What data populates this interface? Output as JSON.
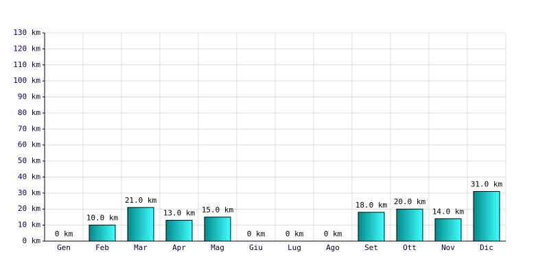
{
  "chart_data": {
    "type": "bar",
    "categories": [
      "Gen",
      "Feb",
      "Mar",
      "Apr",
      "Mag",
      "Giu",
      "Lug",
      "Ago",
      "Set",
      "Ott",
      "Nov",
      "Dic"
    ],
    "values": [
      0,
      10,
      21,
      13,
      15,
      0,
      0,
      0,
      18,
      20,
      14,
      31
    ],
    "value_labels": [
      "0 km",
      "10.0 km",
      "21.0 km",
      "13.0 km",
      "15.0 km",
      "0 km",
      "0 km",
      "0 km",
      "18.0 km",
      "20.0 km",
      "14.0 km",
      "31.0 km"
    ],
    "color": [
      "#008a8a",
      "#40ffff"
    ],
    "ylim": [
      0,
      130
    ],
    "yticks": [
      {
        "value": 0,
        "label": "0 km"
      },
      {
        "value": 10,
        "label": "10 km"
      },
      {
        "value": 20,
        "label": "20 km"
      },
      {
        "value": 30,
        "label": "30 km"
      },
      {
        "value": 40,
        "label": "40 km"
      },
      {
        "value": 50,
        "label": "50 km"
      },
      {
        "value": 60,
        "label": "60 km"
      },
      {
        "value": 70,
        "label": "70 km"
      },
      {
        "value": 80,
        "label": "80 km"
      },
      {
        "value": 90,
        "label": "90 km"
      },
      {
        "value": 100,
        "label": "100 km"
      },
      {
        "value": 110,
        "label": "110 km"
      },
      {
        "value": 120,
        "label": "120 km"
      },
      {
        "value": 130,
        "label": "130 km"
      }
    ],
    "grid": true
  }
}
